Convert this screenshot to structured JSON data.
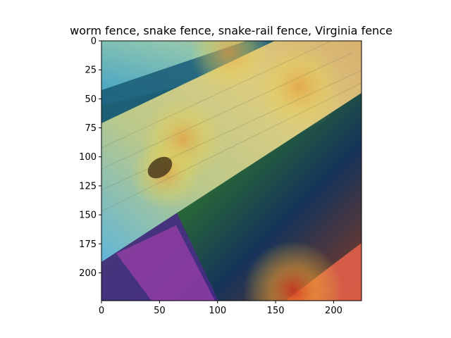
{
  "chart_data": {
    "type": "heatmap",
    "title": "worm fence, snake fence, snake-rail fence, Virginia fence",
    "xlabel": "",
    "ylabel": "",
    "xlim": [
      0,
      224
    ],
    "ylim": [
      224,
      0
    ],
    "x_ticks": [
      0,
      50,
      100,
      150,
      200
    ],
    "y_ticks": [
      0,
      25,
      50,
      75,
      100,
      125,
      150,
      175,
      200
    ],
    "grid": false,
    "legend": "none",
    "description_colormap": "jet",
    "hotspots": [
      {
        "x": 170,
        "y": 40,
        "intensity": 0.78
      },
      {
        "x": 70,
        "y": 85,
        "intensity": 0.72
      },
      {
        "x": 110,
        "y": 10,
        "intensity": 0.65
      },
      {
        "x": 165,
        "y": 215,
        "intensity": 1.0
      },
      {
        "x": 55,
        "y": 115,
        "intensity": 0.5
      }
    ],
    "colors": {
      "wood_light": "#c9c08a",
      "grass_dark": "#173f20",
      "shadow_purple": "#5a2a7a"
    }
  }
}
